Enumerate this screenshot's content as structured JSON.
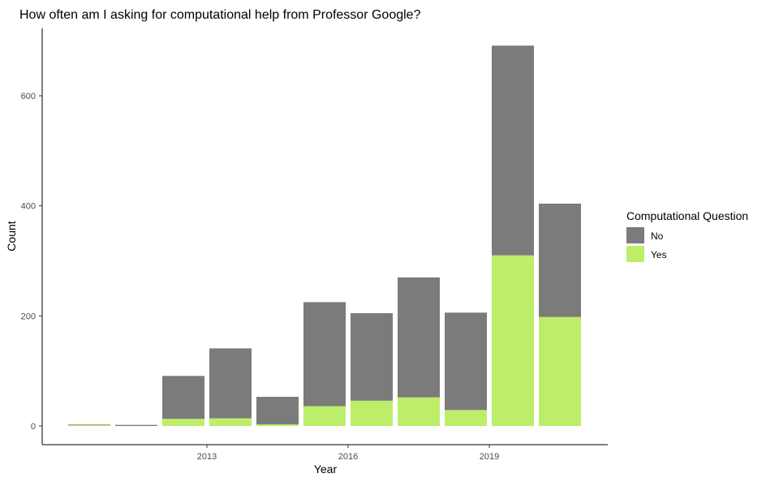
{
  "chart_data": {
    "type": "bar",
    "stacked": true,
    "title": "How often am I asking for computational help from Professor Google?",
    "xlabel": "Year",
    "ylabel": "Count",
    "x": [
      2011,
      2012,
      2013,
      2014,
      2015,
      2016,
      2017,
      2018,
      2019,
      2020,
      2021
    ],
    "x_ticks": [
      "2013",
      "2016",
      "2019"
    ],
    "y_ticks": [
      "0",
      "200",
      "400",
      "600"
    ],
    "ylim": [
      0,
      700
    ],
    "grid": false,
    "legend": {
      "title": "Computational Question",
      "placement": "right",
      "items": [
        "No",
        "Yes"
      ]
    },
    "series": [
      {
        "name": "No",
        "color": "#7b7b7b",
        "values": [
          1,
          2,
          78,
          127,
          50,
          189,
          159,
          218,
          177,
          381,
          206
        ]
      },
      {
        "name": "Yes",
        "color": "#bdee6a",
        "values": [
          2,
          0,
          13,
          14,
          3,
          36,
          46,
          52,
          29,
          310,
          198
        ]
      }
    ]
  }
}
